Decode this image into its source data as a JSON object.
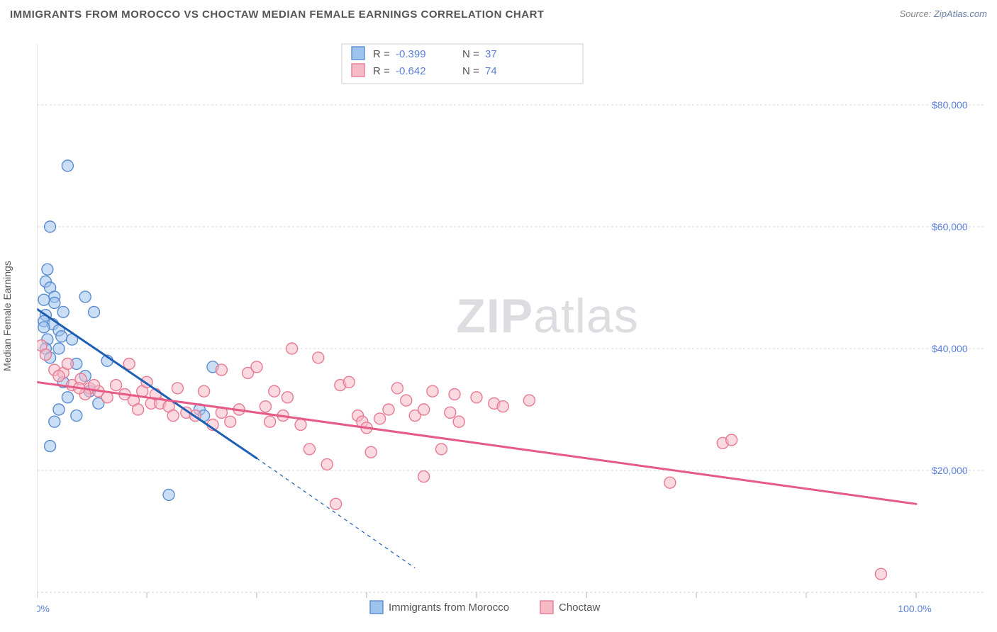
{
  "title": "IMMIGRANTS FROM MOROCCO VS CHOCTAW MEDIAN FEMALE EARNINGS CORRELATION CHART",
  "source_prefix": "Source: ",
  "source_link": "ZipAtlas.com",
  "y_axis_label": "Median Female Earnings",
  "watermark_a": "ZIP",
  "watermark_b": "atlas",
  "chart": {
    "type": "scatter",
    "background_color": "#ffffff",
    "grid_color": "#d7d7d7",
    "axis_color": "#cfcfcf",
    "xlim": [
      0,
      100
    ],
    "ylim": [
      0,
      90000
    ],
    "x_ticks": [
      0,
      12.5,
      25,
      37.5,
      50,
      62.5,
      75,
      87.5,
      100
    ],
    "x_tick_labels": {
      "0": "0.0%",
      "100": "100.0%"
    },
    "y_ticks": [
      20000,
      40000,
      60000,
      80000
    ],
    "y_tick_labels": [
      "$20,000",
      "$40,000",
      "$60,000",
      "$80,000"
    ],
    "marker_radius": 8,
    "marker_opacity": 0.55,
    "series": [
      {
        "id": "morocco",
        "name": "Immigrants from Morocco",
        "color_fill": "#9ec3ed",
        "color_stroke": "#5a8ccf",
        "r_label": "R = ",
        "r_value": "-0.399",
        "n_label": "N = ",
        "n_value": "37",
        "trend": {
          "x1": 0,
          "y1": 46500,
          "x2": 25,
          "y2": 22000,
          "extend_x2": 43,
          "extend_y2": 4000,
          "color": "#1e5fb3",
          "width": 3
        },
        "points": [
          [
            1.2,
            53000
          ],
          [
            1.0,
            51000
          ],
          [
            1.5,
            50000
          ],
          [
            2.0,
            48500
          ],
          [
            2.0,
            47500
          ],
          [
            1.0,
            45500
          ],
          [
            0.8,
            44500
          ],
          [
            1.8,
            44000
          ],
          [
            5.5,
            48500
          ],
          [
            2.5,
            43000
          ],
          [
            2.8,
            42000
          ],
          [
            3.0,
            46000
          ],
          [
            0.8,
            43500
          ],
          [
            1.2,
            41500
          ],
          [
            1.0,
            40000
          ],
          [
            1.5,
            38500
          ],
          [
            2.5,
            40000
          ],
          [
            4.0,
            41500
          ],
          [
            4.5,
            37500
          ],
          [
            5.5,
            35500
          ],
          [
            6.0,
            33000
          ],
          [
            7.0,
            31000
          ],
          [
            3.0,
            34500
          ],
          [
            3.5,
            32000
          ],
          [
            2.5,
            30000
          ],
          [
            2.0,
            28000
          ],
          [
            4.5,
            29000
          ],
          [
            1.5,
            60000
          ],
          [
            3.5,
            70000
          ],
          [
            0.8,
            48000
          ],
          [
            6.5,
            46000
          ],
          [
            8.0,
            38000
          ],
          [
            20.0,
            37000
          ],
          [
            15.0,
            16000
          ],
          [
            1.5,
            24000
          ],
          [
            18.5,
            30000
          ],
          [
            19.0,
            29000
          ]
        ]
      },
      {
        "id": "choctaw",
        "name": "Choctaw",
        "color_fill": "#f6b9c6",
        "color_stroke": "#e77a93",
        "r_label": "R = ",
        "r_value": "-0.642",
        "n_label": "N = ",
        "n_value": "74",
        "trend": {
          "x1": 0,
          "y1": 34500,
          "x2": 100,
          "y2": 14500,
          "color": "#e65a87",
          "width": 3
        },
        "points": [
          [
            0.5,
            40500
          ],
          [
            1.0,
            39000
          ],
          [
            2.0,
            36500
          ],
          [
            3.0,
            36000
          ],
          [
            4.0,
            34000
          ],
          [
            5.0,
            35000
          ],
          [
            6.0,
            33500
          ],
          [
            7.0,
            33000
          ],
          [
            8.0,
            32000
          ],
          [
            9.0,
            34000
          ],
          [
            10.0,
            32500
          ],
          [
            11.0,
            31500
          ],
          [
            12.0,
            33000
          ],
          [
            13.0,
            31000
          ],
          [
            14.0,
            31000
          ],
          [
            15.0,
            30500
          ],
          [
            16.0,
            33500
          ],
          [
            17.0,
            29500
          ],
          [
            18.0,
            29000
          ],
          [
            19.0,
            33000
          ],
          [
            20.0,
            27500
          ],
          [
            21.0,
            36500
          ],
          [
            22.0,
            28000
          ],
          [
            23.0,
            30000
          ],
          [
            24.0,
            36000
          ],
          [
            25.0,
            37000
          ],
          [
            26.0,
            30500
          ],
          [
            27.0,
            33000
          ],
          [
            28.0,
            29000
          ],
          [
            29.0,
            40000
          ],
          [
            30.0,
            27500
          ],
          [
            31.0,
            23500
          ],
          [
            32.0,
            38500
          ],
          [
            33.0,
            21000
          ],
          [
            34.0,
            14500
          ],
          [
            34.5,
            34000
          ],
          [
            35.5,
            34500
          ],
          [
            36.5,
            29000
          ],
          [
            37.0,
            28000
          ],
          [
            38.0,
            23000
          ],
          [
            39.0,
            28500
          ],
          [
            40.0,
            30000
          ],
          [
            41.0,
            33500
          ],
          [
            42.0,
            31500
          ],
          [
            43.0,
            29000
          ],
          [
            44.0,
            19000
          ],
          [
            45.0,
            33000
          ],
          [
            46.0,
            23500
          ],
          [
            47.0,
            29500
          ],
          [
            47.5,
            32500
          ],
          [
            48.0,
            28000
          ],
          [
            50.0,
            32000
          ],
          [
            52.0,
            31000
          ],
          [
            56.0,
            31500
          ],
          [
            72.0,
            18000
          ],
          [
            78.0,
            24500
          ],
          [
            79.0,
            25000
          ],
          [
            96.0,
            3000
          ],
          [
            10.5,
            37500
          ],
          [
            11.5,
            30000
          ],
          [
            5.5,
            32500
          ],
          [
            6.5,
            34000
          ],
          [
            3.5,
            37500
          ],
          [
            4.8,
            33500
          ],
          [
            2.5,
            35500
          ],
          [
            12.5,
            34500
          ],
          [
            13.5,
            32500
          ],
          [
            15.5,
            29000
          ],
          [
            21.0,
            29500
          ],
          [
            26.5,
            28000
          ],
          [
            28.5,
            32000
          ],
          [
            37.5,
            27000
          ],
          [
            44.0,
            30000
          ],
          [
            53.0,
            30500
          ]
        ]
      }
    ]
  }
}
